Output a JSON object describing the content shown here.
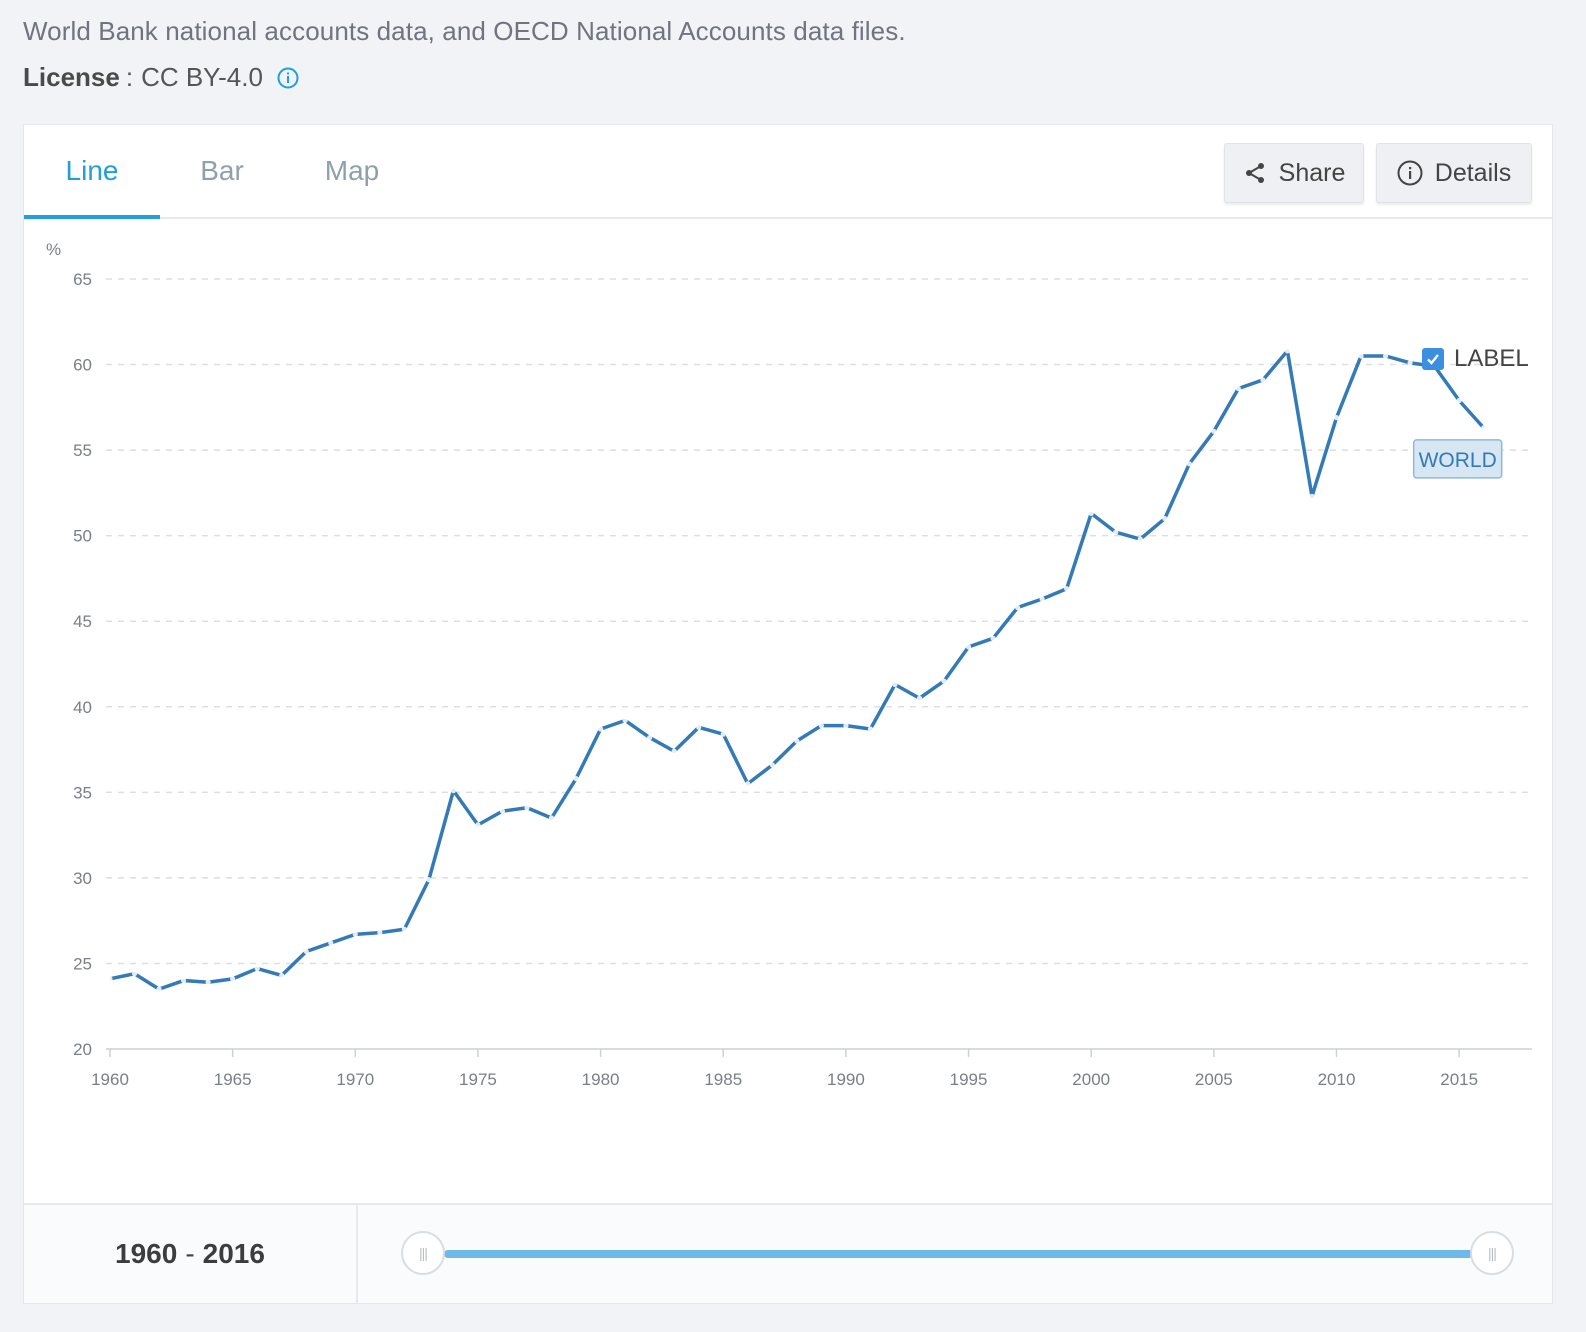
{
  "header": {
    "source_text": "World Bank national accounts data, and OECD National Accounts data files.",
    "license_label": "License",
    "license_sep": ":",
    "license_value": "CC BY-4.0"
  },
  "tabs": [
    {
      "label": "Line",
      "active": true
    },
    {
      "label": "Bar",
      "active": false
    },
    {
      "label": "Map",
      "active": false
    }
  ],
  "buttons": {
    "share_label": "Share",
    "details_label": "Details"
  },
  "label_toggle": {
    "label": "LABEL",
    "checked": true
  },
  "range": {
    "start": "1960",
    "sep": "-",
    "end": "2016"
  },
  "colors": {
    "accent": "#1ea0dc",
    "series": "#337ab7",
    "slider": "#6cb9ea"
  },
  "chart_data": {
    "type": "line",
    "ylabel": "%",
    "ylim": [
      20,
      65
    ],
    "yticks": [
      20,
      25,
      30,
      35,
      40,
      45,
      50,
      55,
      60,
      65
    ],
    "xlim": [
      1960,
      2018
    ],
    "xticks": [
      1960,
      1965,
      1970,
      1975,
      1980,
      1985,
      1990,
      1995,
      2000,
      2005,
      2010,
      2015
    ],
    "grid": true,
    "series": [
      {
        "name": "WORLD",
        "x": [
          1960,
          1961,
          1962,
          1963,
          1964,
          1965,
          1966,
          1967,
          1968,
          1969,
          1970,
          1971,
          1972,
          1973,
          1974,
          1975,
          1976,
          1977,
          1978,
          1979,
          1980,
          1981,
          1982,
          1983,
          1984,
          1985,
          1986,
          1987,
          1988,
          1989,
          1990,
          1991,
          1992,
          1993,
          1994,
          1995,
          1996,
          1997,
          1998,
          1999,
          2000,
          2001,
          2002,
          2003,
          2004,
          2005,
          2006,
          2007,
          2008,
          2009,
          2010,
          2011,
          2012,
          2013,
          2014,
          2015,
          2016
        ],
        "values": [
          24.1,
          24.4,
          23.5,
          24.0,
          23.9,
          24.1,
          24.7,
          24.3,
          25.7,
          26.2,
          26.7,
          26.8,
          27.0,
          29.9,
          35.1,
          33.1,
          33.9,
          34.1,
          33.5,
          35.8,
          38.7,
          39.2,
          38.2,
          37.4,
          38.8,
          38.4,
          35.5,
          36.6,
          38.0,
          38.9,
          38.9,
          38.7,
          41.3,
          40.5,
          41.5,
          43.5,
          44.0,
          45.8,
          46.3,
          46.9,
          51.3,
          50.2,
          49.8,
          51.0,
          54.2,
          56.1,
          58.6,
          59.1,
          60.8,
          52.3,
          56.9,
          60.5,
          60.5,
          60.1,
          59.9,
          57.9,
          56.3
        ]
      }
    ]
  }
}
